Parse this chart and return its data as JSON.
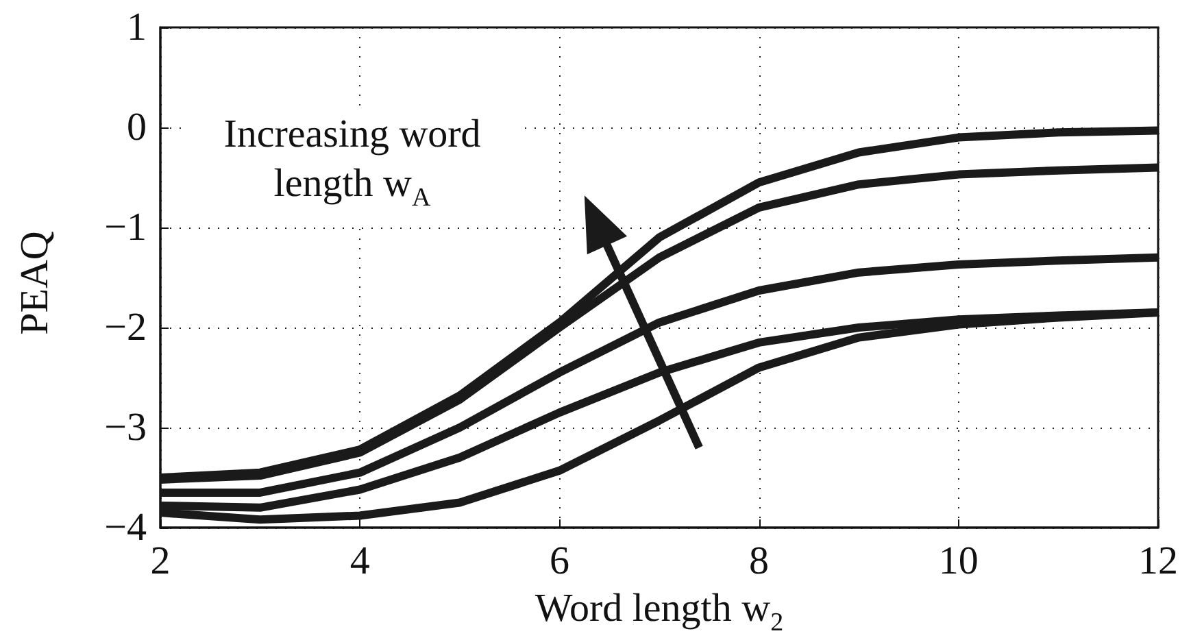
{
  "chart_data": {
    "type": "line",
    "xlabel": "Word length w$_{2}$",
    "ylabel": "PEAQ",
    "annotations": [
      "Increasing word length w$_{A}$"
    ],
    "x": [
      2,
      3,
      4,
      5,
      6,
      7,
      8,
      9,
      10,
      11,
      12
    ],
    "series": [
      {
        "color": "#1a1a1a",
        "values": [
          -3.5,
          -3.45,
          -3.22,
          -2.68,
          -1.95,
          -1.1,
          -0.55,
          -0.25,
          -0.1,
          -0.05,
          -0.03
        ]
      },
      {
        "color": "#1a1a1a",
        "values": [
          -3.52,
          -3.48,
          -3.25,
          -2.72,
          -2.0,
          -1.3,
          -0.8,
          -0.57,
          -0.47,
          -0.43,
          -0.4
        ]
      },
      {
        "color": "#1a1a1a",
        "values": [
          -3.65,
          -3.65,
          -3.45,
          -3.0,
          -2.45,
          -1.95,
          -1.63,
          -1.45,
          -1.37,
          -1.33,
          -1.3
        ]
      },
      {
        "color": "#1a1a1a",
        "values": [
          -3.78,
          -3.8,
          -3.62,
          -3.3,
          -2.85,
          -2.45,
          -2.15,
          -2.0,
          -1.92,
          -1.88,
          -1.85
        ]
      },
      {
        "color": "#1a1a1a",
        "values": [
          -3.85,
          -3.92,
          -3.88,
          -3.75,
          -3.43,
          -2.93,
          -2.4,
          -2.1,
          -1.97,
          -1.9,
          -1.85
        ]
      }
    ],
    "xlim": [
      2,
      12
    ],
    "xticks": [
      2,
      4,
      6,
      8,
      10,
      12
    ],
    "ylim": [
      -4,
      1
    ],
    "yticks": [
      -4,
      -3,
      -2,
      -1,
      0,
      1
    ],
    "grid": true,
    "marker": "none",
    "line_style": "solid"
  }
}
